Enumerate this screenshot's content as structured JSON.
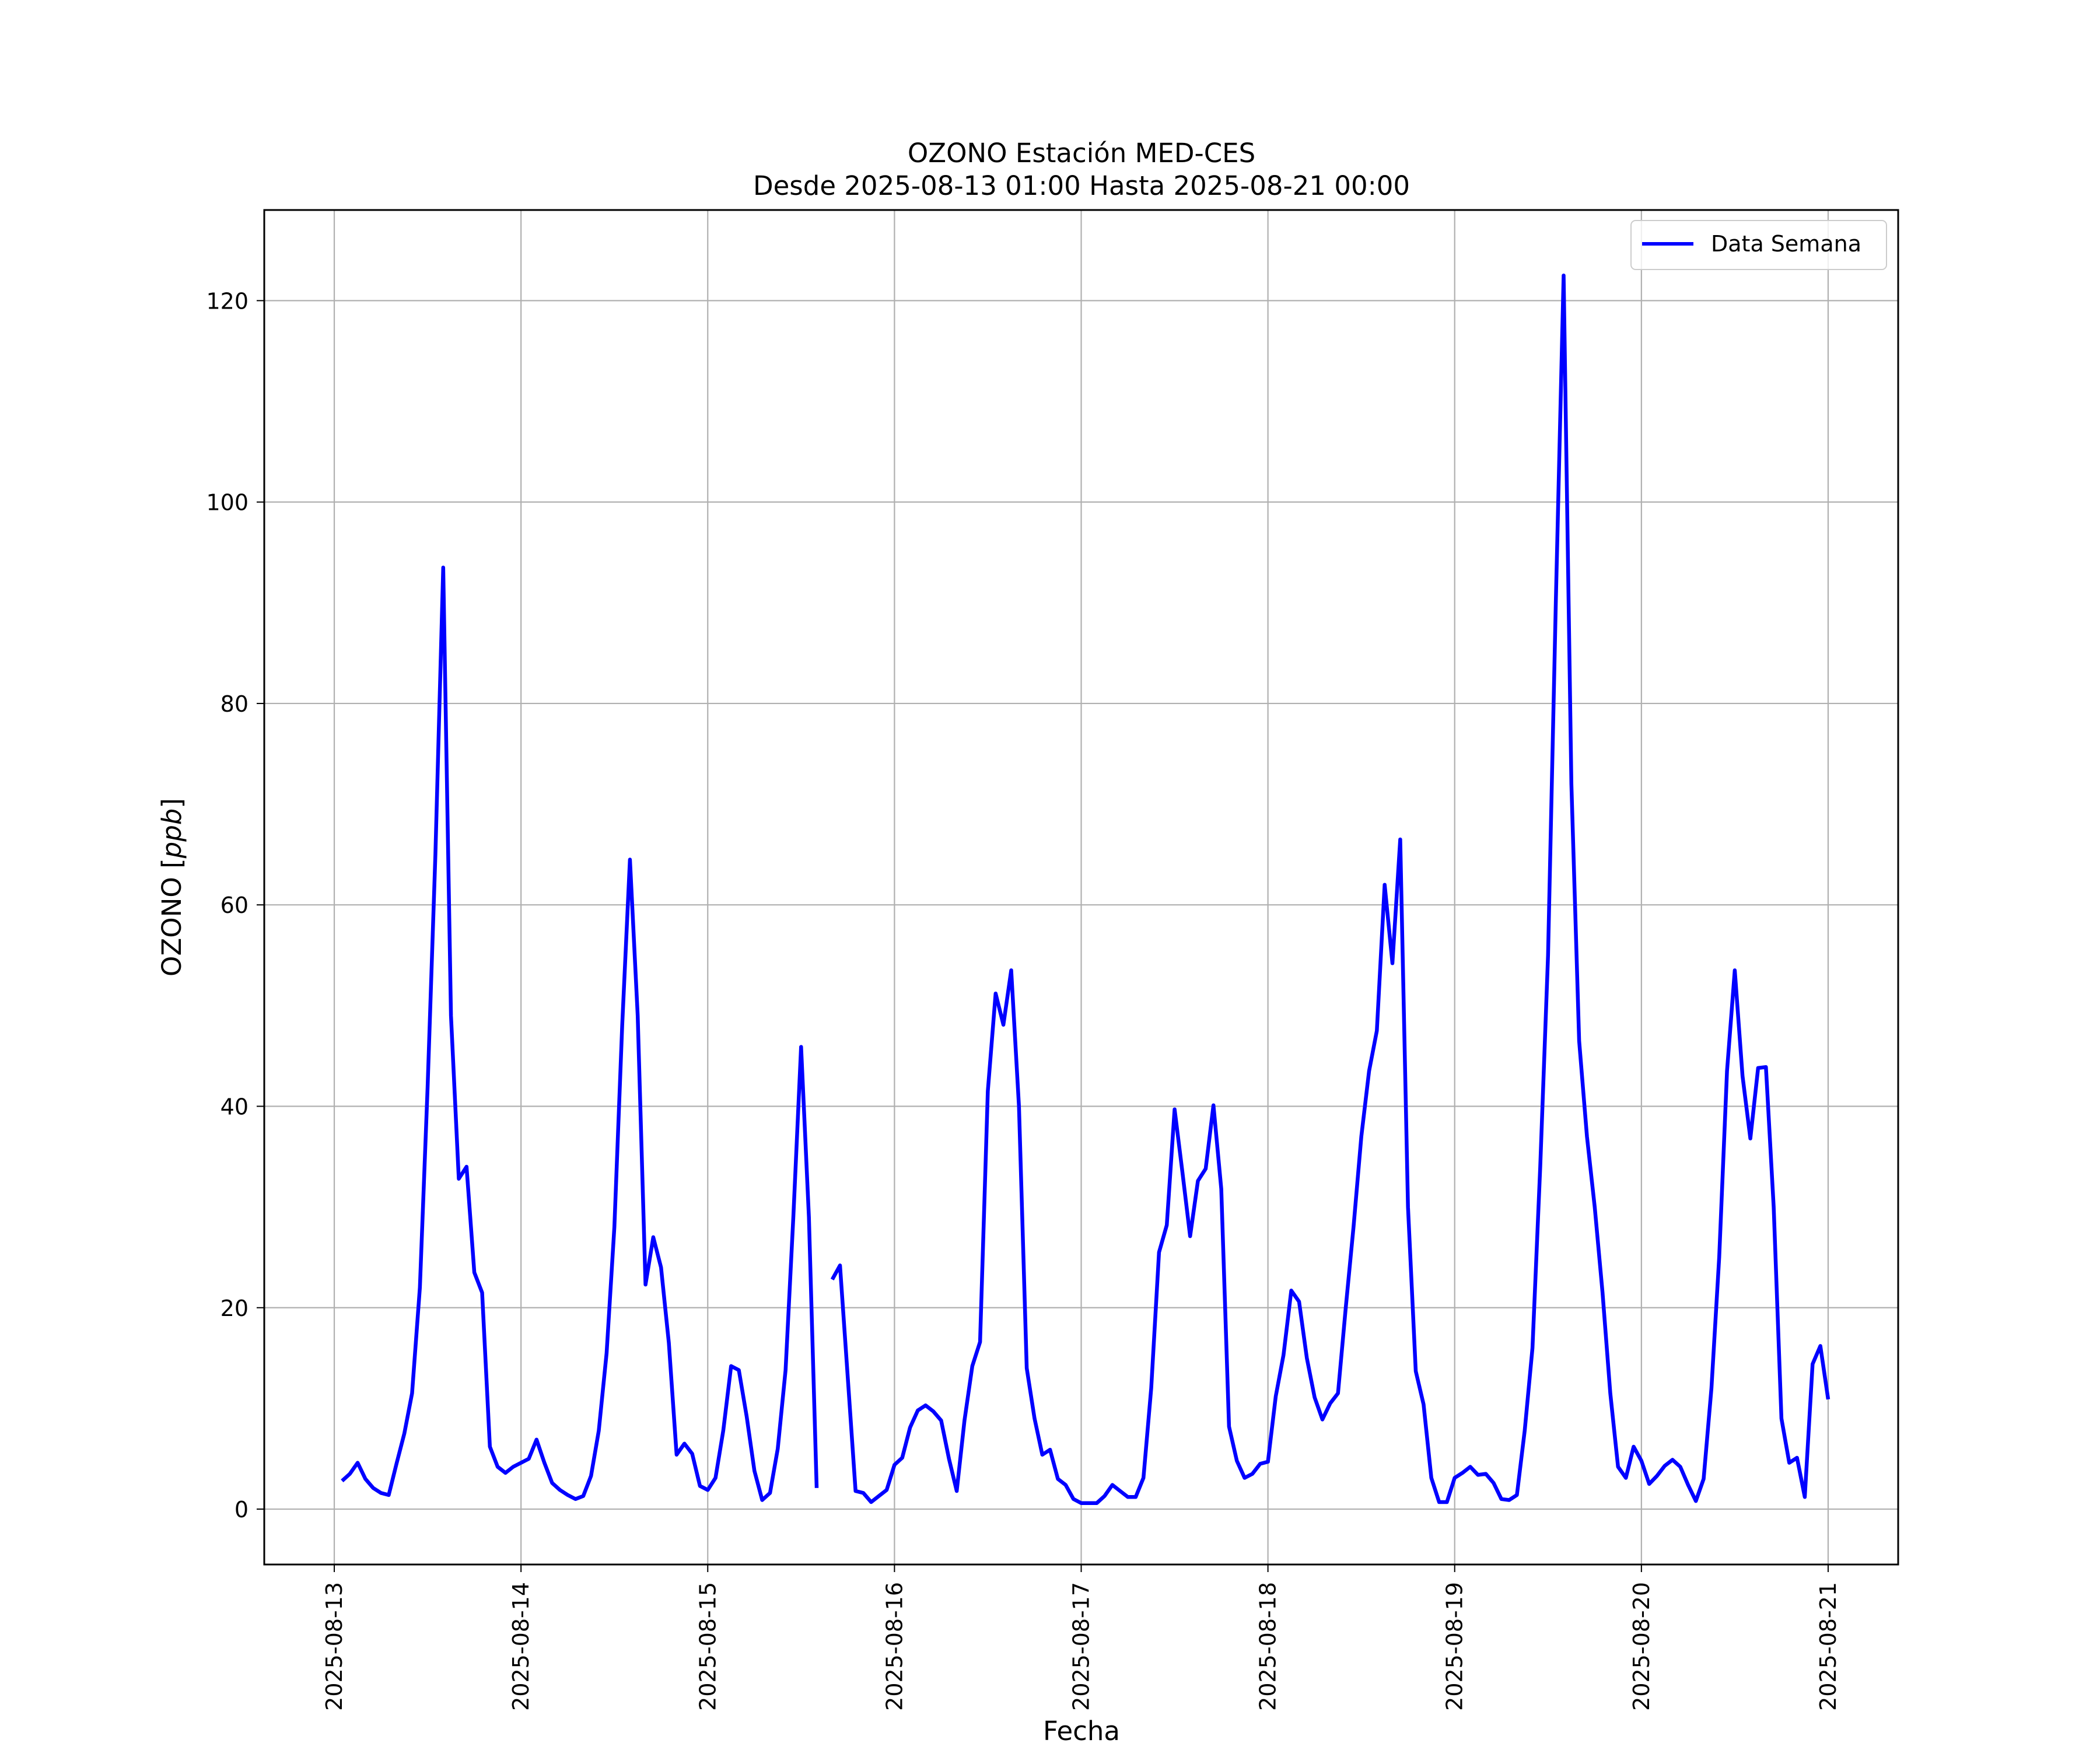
{
  "chart_data": {
    "type": "line",
    "title": "OZONO Estación MED-CES",
    "subtitle": "Desde 2025-08-13 01:00 Hasta 2025-08-21 00:00",
    "xlabel": "Fecha",
    "ylabel": "OZONO [ppb]",
    "ylabel_plain": "OZONO [",
    "ylabel_italic": "ppb",
    "ylabel_close": "]",
    "x_start": "2025-08-13 00:00",
    "x_end": "2025-08-21 00:00",
    "xlim": [
      "2025-08-12 15:00",
      "2025-08-21 09:00"
    ],
    "ylim": [
      -5.5,
      129
    ],
    "x_ticks": [
      "2025-08-13",
      "2025-08-14",
      "2025-08-15",
      "2025-08-16",
      "2025-08-17",
      "2025-08-18",
      "2025-08-19",
      "2025-08-20",
      "2025-08-21"
    ],
    "y_ticks": [
      0,
      20,
      40,
      60,
      80,
      100,
      120
    ],
    "grid": true,
    "legend_position": "top-right",
    "series": [
      {
        "name": "Data Semana",
        "color": "#0000ff",
        "start": "2025-08-13 01:00",
        "step_hours": 1,
        "values": [
          2.8,
          3.5,
          4.6,
          3.0,
          2.1,
          1.6,
          1.4,
          4.5,
          7.5,
          11.5,
          22.0,
          42.0,
          65.0,
          93.5,
          49.0,
          32.8,
          34.0,
          23.5,
          21.5,
          6.2,
          4.2,
          3.6,
          4.2,
          4.6,
          5.0,
          6.9,
          4.6,
          2.6,
          1.9,
          1.4,
          1.0,
          1.3,
          3.3,
          7.8,
          15.5,
          28.0,
          48.0,
          64.5,
          49.0,
          22.3,
          27.0,
          24.0,
          16.5,
          5.4,
          6.5,
          5.5,
          2.3,
          1.9,
          3.1,
          7.8,
          14.2,
          13.8,
          9.2,
          3.8,
          0.9,
          1.6,
          6.0,
          13.8,
          29.0,
          45.9,
          29.0,
          2.1,
          null,
          22.8,
          24.2,
          13.0,
          1.8,
          1.6,
          0.7,
          1.3,
          1.9,
          4.4,
          5.1,
          8.1,
          9.8,
          10.3,
          9.7,
          8.8,
          5.0,
          1.8,
          8.8,
          14.2,
          16.6,
          41.5,
          51.2,
          48.1,
          53.5,
          40.0,
          14.0,
          9.0,
          5.4,
          5.9,
          3.0,
          2.4,
          1.0,
          0.6,
          0.6,
          0.6,
          1.3,
          2.4,
          1.8,
          1.2,
          1.2,
          3.1,
          12.0,
          25.5,
          28.2,
          39.7,
          33.5,
          27.1,
          32.6,
          33.8,
          40.1,
          31.8,
          8.2,
          4.8,
          3.1,
          3.5,
          4.5,
          4.7,
          11.2,
          15.3,
          21.7,
          20.6,
          15.0,
          11.1,
          8.9,
          10.5,
          11.5,
          20.0,
          28.0,
          37.0,
          43.5,
          47.5,
          62.0,
          54.2,
          66.5,
          30.0,
          13.7,
          10.4,
          3.1,
          0.7,
          0.7,
          3.1,
          3.6,
          4.2,
          3.4,
          3.5,
          2.6,
          1.0,
          0.9,
          1.4,
          7.8,
          16.0,
          34.0,
          55.0,
          90.0,
          122.5,
          72.0,
          46.5,
          37.0,
          30.0,
          21.5,
          11.5,
          4.2,
          3.1,
          6.2,
          4.8,
          2.5,
          3.3,
          4.3,
          4.9,
          4.2,
          2.4,
          0.8,
          3.0,
          12.0,
          25.0,
          43.5,
          53.5,
          43.0,
          36.8,
          43.8,
          43.9,
          30.0,
          9.0,
          4.6,
          5.1,
          1.2,
          14.4,
          16.2,
          10.9
        ]
      }
    ]
  }
}
